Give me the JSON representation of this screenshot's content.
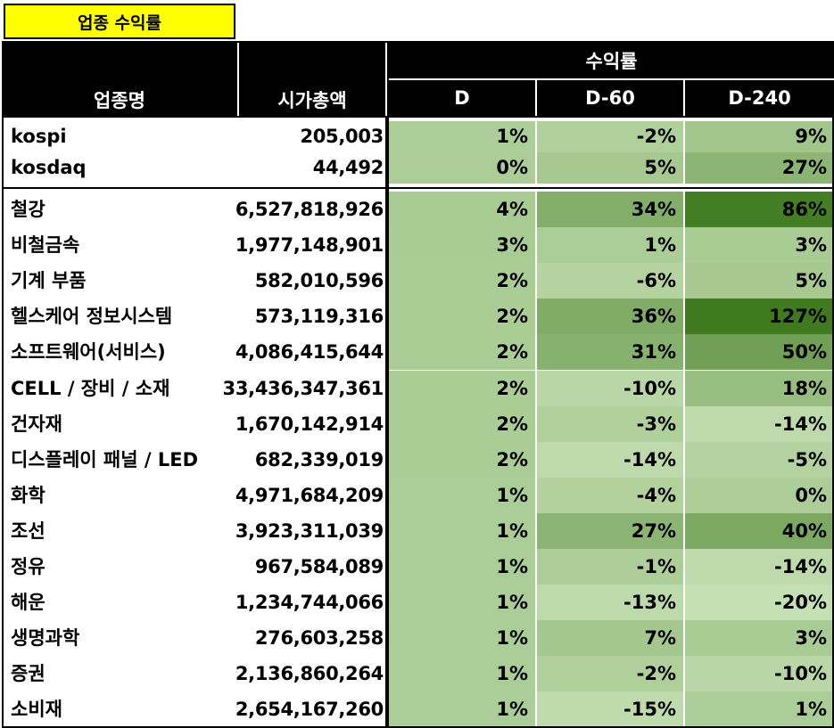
{
  "title": "업종 수익률",
  "headers": {
    "sector": "업종명",
    "market_cap": "시가총액",
    "return_group": "수익률",
    "d": "D",
    "d60": "D-60",
    "d240": "D-240"
  },
  "index_rows": [
    {
      "name": "kospi",
      "market_cap": "205,003",
      "d": "1%",
      "d60": "-2%",
      "d240": "9%"
    },
    {
      "name": "kosdaq",
      "market_cap": "44,492",
      "d": "0%",
      "d60": "5%",
      "d240": "27%"
    }
  ],
  "sector_rows": [
    {
      "name": "철강",
      "market_cap": "6,527,818,926",
      "d": "4%",
      "d60": "34%",
      "d240": "86%"
    },
    {
      "name": "비철금속",
      "market_cap": "1,977,148,901",
      "d": "3%",
      "d60": "1%",
      "d240": "3%"
    },
    {
      "name": "기계 부품",
      "market_cap": "582,010,596",
      "d": "2%",
      "d60": "-6%",
      "d240": "5%"
    },
    {
      "name": "헬스케어 정보시스템",
      "market_cap": "573,119,316",
      "d": "2%",
      "d60": "36%",
      "d240": "127%"
    },
    {
      "name": "소프트웨어(서비스)",
      "market_cap": "4,086,415,644",
      "d": "2%",
      "d60": "31%",
      "d240": "50%"
    },
    {
      "name": "CELL / 장비 / 소재",
      "market_cap": "33,436,347,361",
      "d": "2%",
      "d60": "-10%",
      "d240": "18%"
    },
    {
      "name": "건자재",
      "market_cap": "1,670,142,914",
      "d": "2%",
      "d60": "-3%",
      "d240": "-14%"
    },
    {
      "name": "디스플레이 패널 / LED",
      "market_cap": "682,339,019",
      "d": "2%",
      "d60": "-14%",
      "d240": "-5%"
    },
    {
      "name": "화학",
      "market_cap": "4,971,684,209",
      "d": "1%",
      "d60": "-4%",
      "d240": "0%"
    },
    {
      "name": "조선",
      "market_cap": "3,923,311,039",
      "d": "1%",
      "d60": "27%",
      "d240": "40%"
    },
    {
      "name": "정유",
      "market_cap": "967,584,089",
      "d": "1%",
      "d60": "-1%",
      "d240": "-14%"
    },
    {
      "name": "해운",
      "market_cap": "1,234,744,066",
      "d": "1%",
      "d60": "-13%",
      "d240": "-20%"
    },
    {
      "name": "생명과학",
      "market_cap": "276,603,258",
      "d": "1%",
      "d60": "7%",
      "d240": "3%"
    },
    {
      "name": "증권",
      "market_cap": "2,136,860,264",
      "d": "1%",
      "d60": "-2%",
      "d240": "-10%"
    },
    {
      "name": "소비재",
      "market_cap": "2,654,167,260",
      "d": "1%",
      "d60": "-15%",
      "d240": "1%"
    }
  ],
  "colors": {
    "title_bg": "#ffff00",
    "header_bg": "#000000",
    "header_text": "#ffffff",
    "scale_low": "#c5e0b3",
    "scale_high": "#3f7a1f"
  }
}
